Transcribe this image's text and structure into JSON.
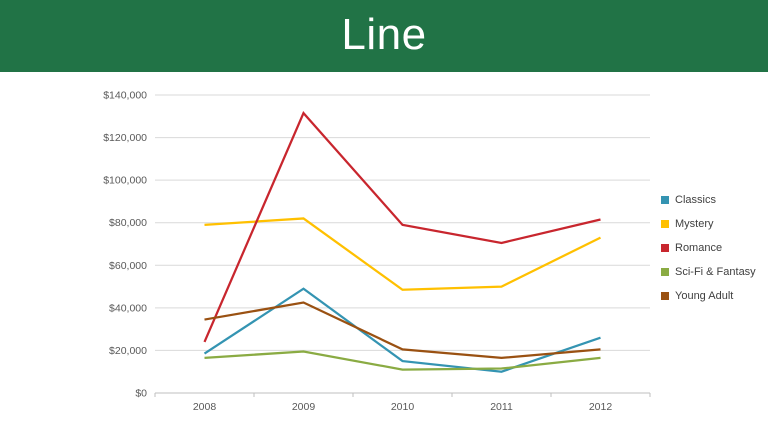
{
  "header": {
    "title": "Line",
    "background_color": "#217346",
    "text_color": "#FFFFFF"
  },
  "chart_data": {
    "type": "line",
    "title": "Line",
    "categories": [
      "2008",
      "2009",
      "2010",
      "2011",
      "2012"
    ],
    "series": [
      {
        "name": "Classics",
        "color": "#3494B2",
        "values": [
          18500,
          49000,
          15000,
          10000,
          26000
        ]
      },
      {
        "name": "Mystery",
        "color": "#FFC000",
        "values": [
          79000,
          82000,
          48500,
          50000,
          73000
        ]
      },
      {
        "name": "Romance",
        "color": "#C8262E",
        "values": [
          24000,
          131500,
          79000,
          70500,
          81500
        ]
      },
      {
        "name": "Sci-Fi & Fantasy",
        "color": "#8AAB43",
        "values": [
          16500,
          19500,
          11000,
          11500,
          16500
        ]
      },
      {
        "name": "Young Adult",
        "color": "#9A5112",
        "values": [
          34500,
          42500,
          20500,
          16500,
          20500
        ]
      }
    ],
    "xlabel": "",
    "ylabel": "",
    "ylim": [
      0,
      140000
    ],
    "y_tick_step": 20000,
    "y_tick_labels": [
      "$0",
      "$20,000",
      "$40,000",
      "$60,000",
      "$80,000",
      "$100,000",
      "$120,000",
      "$140,000"
    ],
    "grid": true,
    "legend_position": "right",
    "axis_label_color": "#595959",
    "grid_color": "#D9D9D9",
    "axis_line_color": "#BFBFBF"
  }
}
